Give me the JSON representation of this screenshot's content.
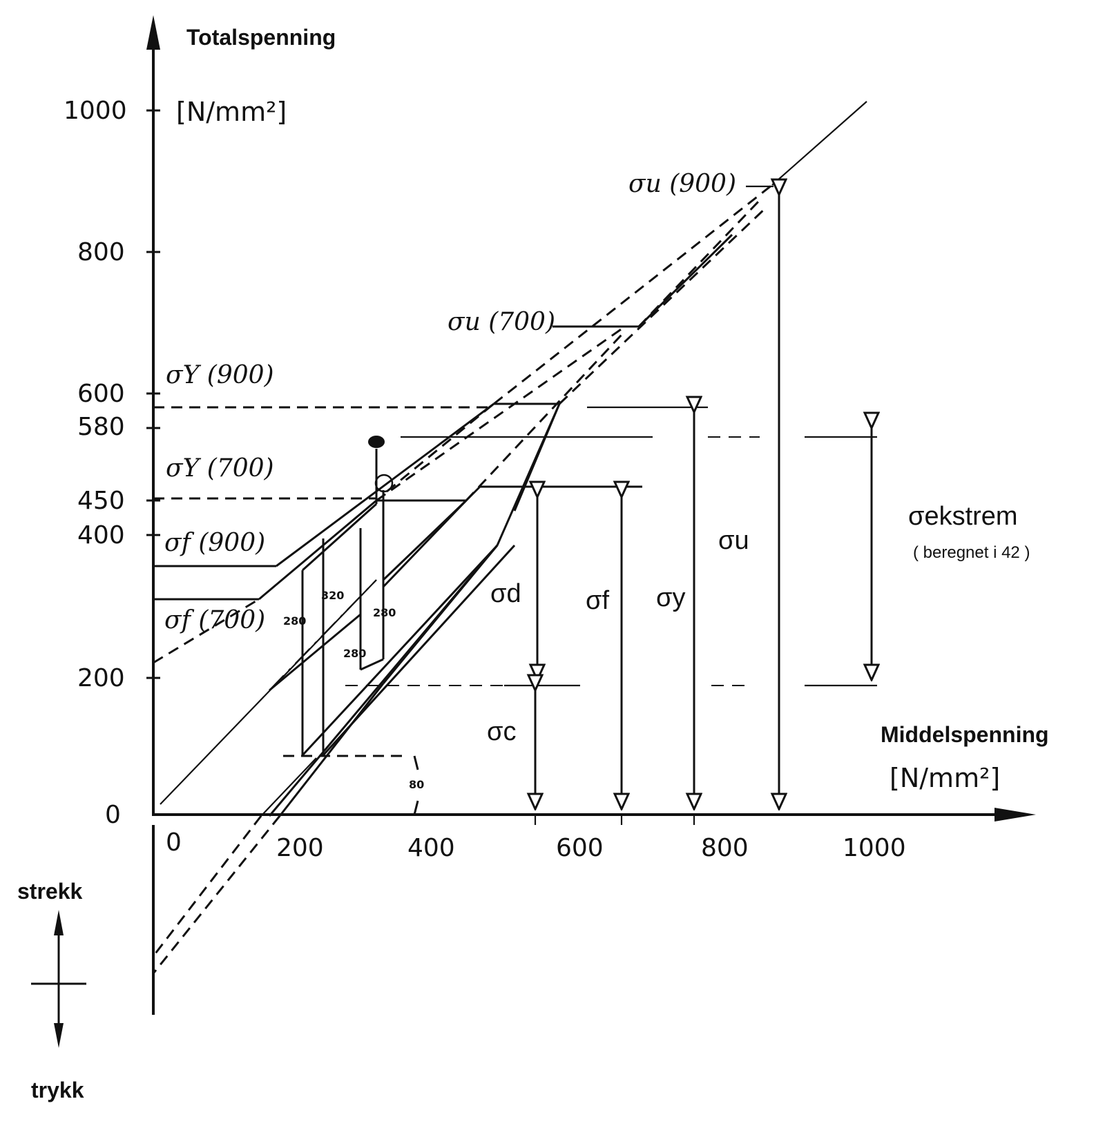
{
  "y_axis": {
    "title": "Totalspenning",
    "unit": "[N/mm²]",
    "ticks": [
      "1000",
      "800",
      "600",
      "580",
      "450",
      "400",
      "200",
      "0"
    ]
  },
  "x_axis": {
    "title": "Middelspenning",
    "unit": "[N/mm²]",
    "ticks": [
      "0",
      "200",
      "400",
      "600",
      "800",
      "1000"
    ]
  },
  "curve_labels": {
    "sigma_u_900": "σu (900)",
    "sigma_u_700": "σu (700)",
    "sigma_y_900": "σY (900)",
    "sigma_y_700": "σY (700)",
    "sigma_f_900": "σf (900)",
    "sigma_f_700": "σf (700)"
  },
  "small_values": [
    "280",
    "320",
    "280",
    "280",
    "80"
  ],
  "dimension_labels": {
    "sigma_d": "σd",
    "sigma_c": "σc",
    "sigma_f": "σf",
    "sigma_y": "σy",
    "sigma_u": "σu",
    "sigma_ekstrem": "σekstrem",
    "sigma_ekstrem_note": "( beregnet i 42 )"
  },
  "legend": {
    "up_label": "strekk",
    "down_label": "trykk"
  }
}
